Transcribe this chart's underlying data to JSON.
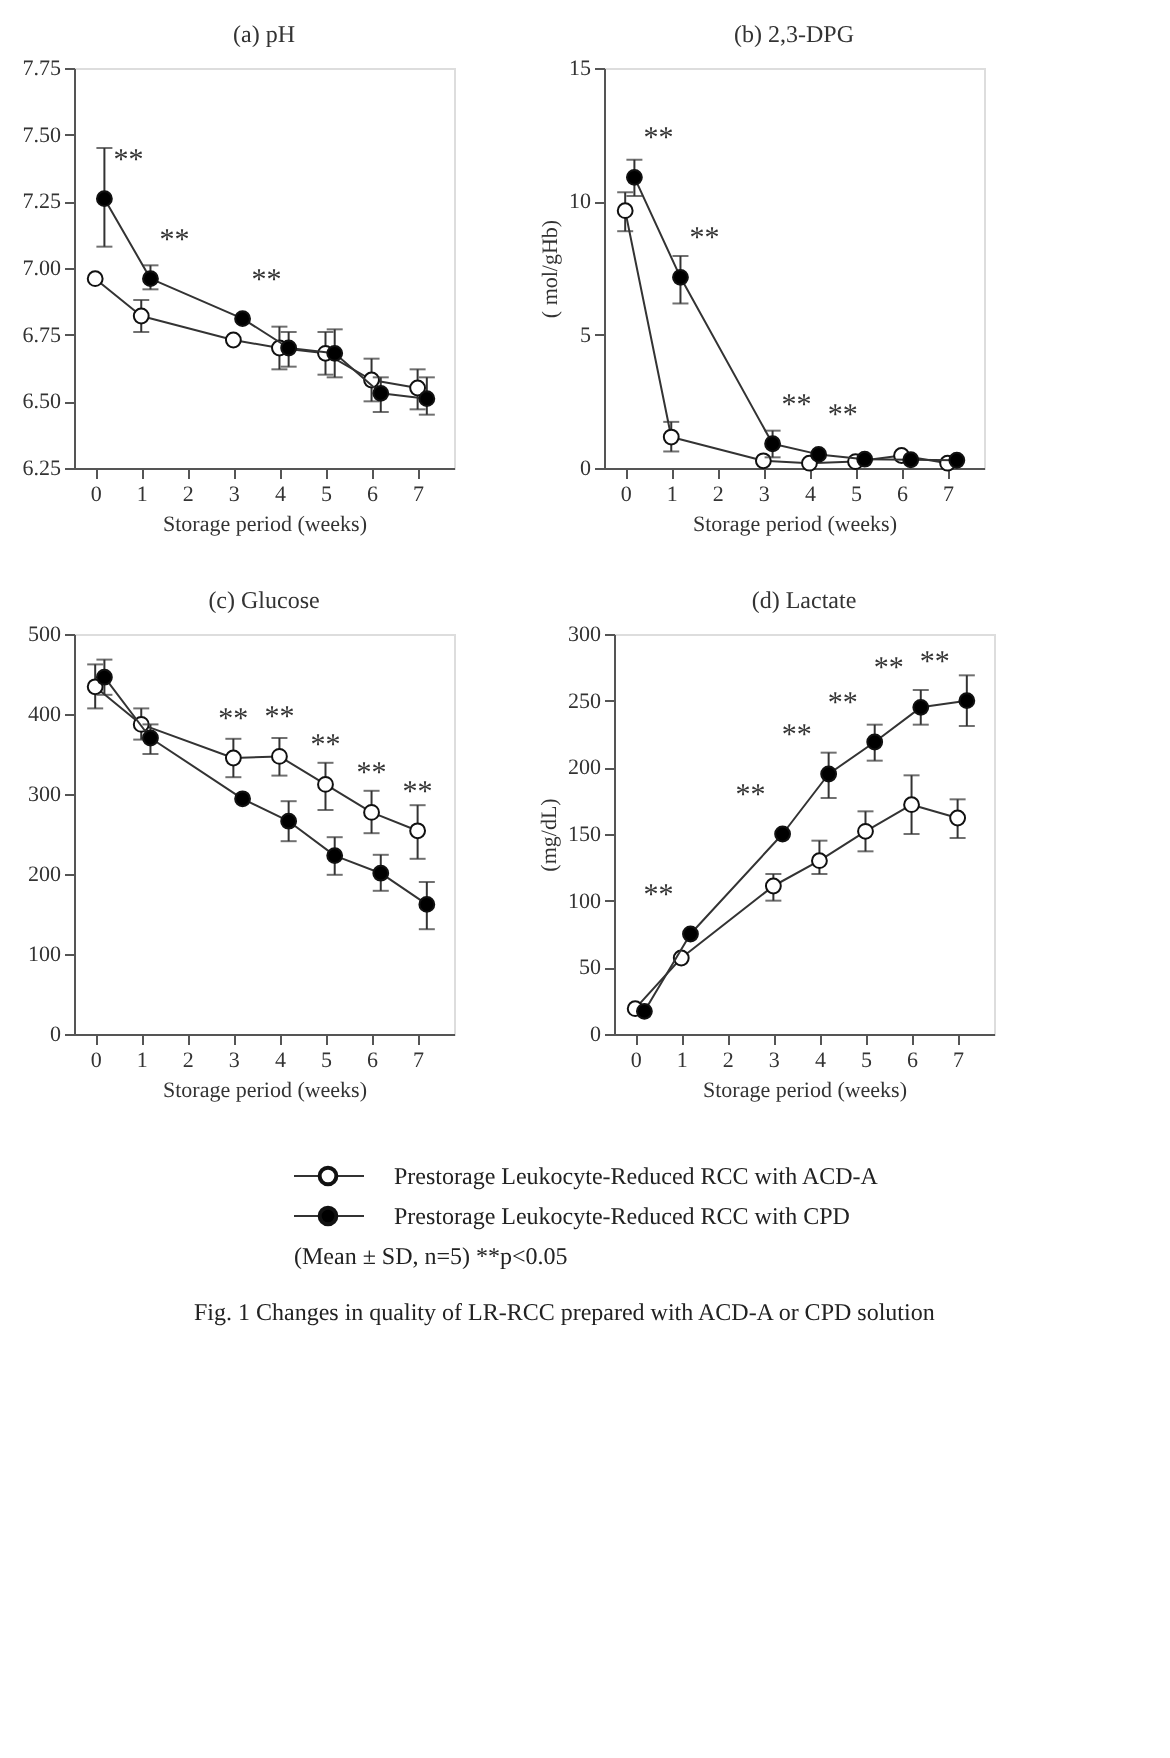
{
  "chart_data": [
    {
      "type": "line",
      "title": "(a)  pH",
      "xlabel": "Storage period (weeks)",
      "xlim": [
        -0.46,
        7.79
      ],
      "xticks": [
        0,
        1,
        2,
        3,
        4,
        5,
        6,
        7
      ],
      "ylim": [
        6.25,
        7.75
      ],
      "yticks": [
        6.25,
        {
          "value": 6.5,
          "label": "6.50"
        },
        6.75,
        {
          "value": 7.0,
          "label": "7.00"
        },
        7.25,
        {
          "value": 7.5,
          "label": "7.50"
        },
        7.75
      ],
      "marker": "circle",
      "line_style": "solid",
      "grid": false,
      "series": [
        {
          "color": "#ffffff",
          "x": [
            0,
            1,
            3,
            4,
            5,
            6,
            7
          ],
          "values": [
            6.96,
            6.82,
            6.73,
            6.7,
            6.68,
            6.58,
            6.55
          ],
          "errors": [
            null,
            [
              6.76,
              6.88
            ],
            null,
            [
              6.62,
              6.78
            ],
            [
              6.6,
              6.76
            ],
            [
              6.5,
              6.66
            ],
            [
              6.47,
              6.62
            ]
          ]
        },
        {
          "color": "#000000",
          "x": [
            0.2,
            1.2,
            3.2,
            4.2,
            5.2,
            6.2,
            7.2
          ],
          "values": [
            7.26,
            6.96,
            6.81,
            6.7,
            6.68,
            6.53,
            6.51
          ],
          "errors": [
            [
              7.08,
              7.45
            ],
            [
              6.92,
              7.01
            ],
            null,
            [
              6.63,
              6.76
            ],
            [
              6.59,
              6.77
            ],
            [
              6.46,
              6.59
            ],
            [
              6.45,
              6.59
            ]
          ]
        }
      ],
      "annotations": [
        {
          "text": "**",
          "x": 0.2,
          "y": 7.26
        },
        {
          "text": "**",
          "x": 1.2,
          "y": 6.96
        },
        {
          "text": "**",
          "x": 3.2,
          "y": 6.81
        }
      ]
    },
    {
      "type": "line",
      "title": "(b)  2,3-DPG",
      "xlabel": "Storage period (weeks)",
      "ylabel": "( mol/gHb)",
      "xlim": [
        -0.46,
        7.79
      ],
      "xticks": [
        0,
        1,
        2,
        3,
        4,
        5,
        6,
        7
      ],
      "ylim": [
        0,
        15
      ],
      "yticks": [
        0,
        5,
        10,
        15
      ],
      "marker": "circle",
      "line_style": "solid",
      "grid": false,
      "series": [
        {
          "color": "#ffffff",
          "x": [
            0,
            1,
            3,
            4,
            5,
            6,
            7
          ],
          "values": [
            9.65,
            1.16,
            0.27,
            0.18,
            0.24,
            0.47,
            0.18
          ],
          "errors": [
            [
              8.88,
              10.34
            ],
            [
              0.62,
              1.73
            ],
            null,
            null,
            null,
            null,
            null
          ]
        },
        {
          "color": "#000000",
          "x": [
            0.2,
            1.2,
            3.2,
            4.2,
            5.2,
            6.2,
            7.2
          ],
          "values": [
            10.9,
            7.15,
            0.91,
            0.51,
            0.33,
            0.31,
            0.29
          ],
          "errors": [
            [
              10.2,
              11.56
            ],
            [
              6.17,
              7.95
            ],
            [
              0.4,
              1.4
            ],
            null,
            null,
            null,
            null
          ]
        }
      ],
      "annotations": [
        {
          "text": "**",
          "x": 0.2,
          "y": 10.9
        },
        {
          "text": "**",
          "x": 1.2,
          "y": 7.15
        },
        {
          "text": "**",
          "x": 3.2,
          "y": 0.91
        },
        {
          "text": "**",
          "x": 4.2,
          "y": 0.51
        }
      ]
    },
    {
      "type": "line",
      "title": "(c)  Glucose",
      "xlabel": "Storage period (weeks)",
      "xlim": [
        -0.46,
        7.79
      ],
      "xticks": [
        0,
        1,
        2,
        3,
        4,
        5,
        6,
        7
      ],
      "ylim": [
        0,
        500
      ],
      "yticks": [
        0,
        100,
        200,
        300,
        400,
        500
      ],
      "marker": "circle",
      "line_style": "solid",
      "grid": false,
      "series": [
        {
          "color": "#ffffff",
          "x": [
            0,
            1,
            3,
            4,
            5,
            6,
            7
          ],
          "values": [
            434,
            387,
            345,
            347,
            312,
            277,
            254
          ],
          "errors": [
            [
              407,
              462
            ],
            [
              368,
              407
            ],
            [
              321,
              369
            ],
            [
              323,
              370
            ],
            [
              280,
              339
            ],
            [
              251,
              304
            ],
            [
              219,
              286
            ]
          ]
        },
        {
          "color": "#000000",
          "x": [
            0.2,
            1.2,
            3.2,
            4.2,
            5.2,
            6.2,
            7.2
          ],
          "values": [
            446,
            370,
            294,
            266,
            223,
            201,
            162
          ],
          "errors": [
            [
              424,
              468
            ],
            [
              350,
              387
            ],
            null,
            [
              241,
              291
            ],
            [
              199,
              246
            ],
            [
              179,
              224
            ],
            [
              131,
              190
            ]
          ]
        }
      ],
      "annotations": [
        {
          "text": "**",
          "x": 3,
          "y": 345
        },
        {
          "text": "**",
          "x": 4,
          "y": 347
        },
        {
          "text": "**",
          "x": 5,
          "y": 312
        },
        {
          "text": "**",
          "x": 6,
          "y": 277
        },
        {
          "text": "**",
          "x": 7,
          "y": 254
        }
      ]
    },
    {
      "type": "line",
      "title": "(d)  Lactate",
      "xlabel": "Storage period (weeks)",
      "ylabel": "(mg/dL)",
      "xlim": [
        -0.46,
        7.79
      ],
      "xticks": [
        0,
        1,
        2,
        3,
        4,
        5,
        6,
        7
      ],
      "ylim": [
        0,
        300
      ],
      "yticks": [
        0,
        50,
        100,
        150,
        200,
        250,
        300
      ],
      "marker": "circle",
      "line_style": "solid",
      "grid": false,
      "legend": "bottom",
      "series": [
        {
          "name": "Prestorage Leukocyte-Reduced RCC with ACD-A",
          "color": "#ffffff",
          "x": [
            0,
            1,
            3,
            4,
            5,
            6,
            7
          ],
          "values": [
            19,
            57,
            111,
            130,
            152,
            172,
            162
          ],
          "errors": [
            null,
            null,
            [
              100,
              120
            ],
            [
              120,
              145
            ],
            [
              137,
              167
            ],
            [
              150,
              194
            ],
            [
              147,
              176
            ]
          ]
        },
        {
          "name": "Prestorage Leukocyte-Reduced RCC with CPD",
          "color": "#000000",
          "x": [
            0.2,
            1.2,
            3.2,
            4.2,
            5.2,
            6.2,
            7.2
          ],
          "values": [
            17,
            75,
            150,
            195,
            219,
            245,
            250
          ],
          "errors": [
            null,
            null,
            null,
            [
              177,
              211
            ],
            [
              205,
              232
            ],
            [
              232,
              258
            ],
            [
              231,
              269
            ]
          ]
        }
      ],
      "annotations": [
        {
          "text": "**",
          "x": 1.2,
          "y": 75
        },
        {
          "text": "**",
          "x": 3.2,
          "y": 150
        },
        {
          "text": "**",
          "x": 4.2,
          "y": 195
        },
        {
          "text": "**",
          "x": 5.2,
          "y": 219
        },
        {
          "text": "**",
          "x": 6.2,
          "y": 245
        },
        {
          "text": "**",
          "x": 7.2,
          "y": 250
        },
        "(Mean ± SD, n=5)      **p<0.05",
        "Fig. 1    Changes in quality of LR-RCC prepared with ACD-A or CPD solution"
      ]
    }
  ]
}
